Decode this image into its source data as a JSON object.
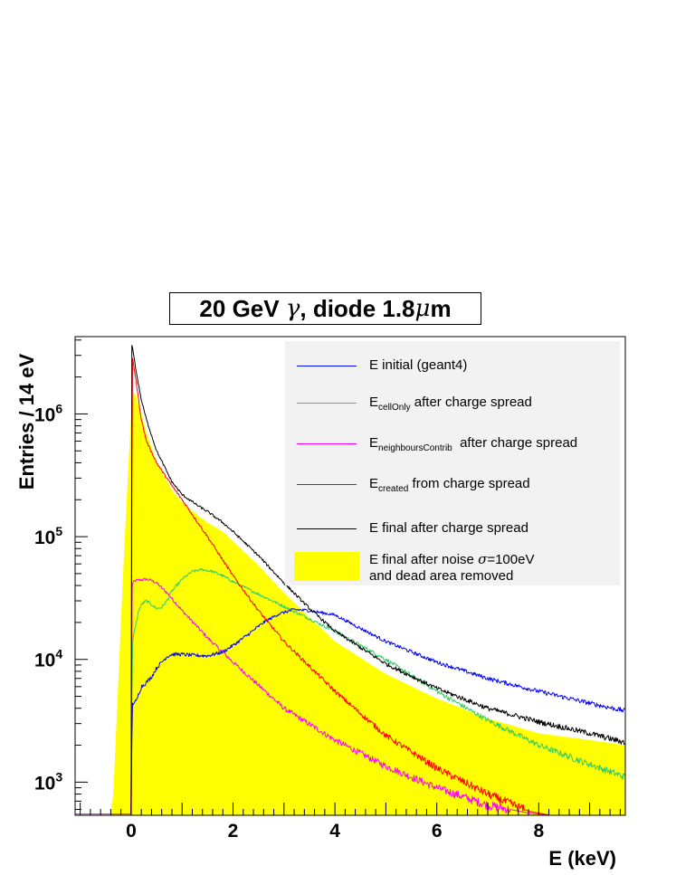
{
  "chart_data": {
    "type": "line",
    "title_prefix": "20 GeV ",
    "title_gamma": "γ",
    "title_middle": ", diode 1.8",
    "title_mu": "μ",
    "title_suffix": "m",
    "xlabel": "E (keV)",
    "ylabel": "Entries / 14 eV",
    "xlim": [
      -1.1,
      9.7
    ],
    "ylim_log10": [
      2.73,
      6.63
    ],
    "y_scale": "log",
    "x_ticks": [
      "0",
      "2",
      "4",
      "6",
      "8"
    ],
    "y_ticks": [
      "10^3",
      "10^4",
      "10^5",
      "10^6"
    ],
    "legend_placement": "top-right",
    "colors": {
      "initial": "#0000ff",
      "cellOnly": "#33cc66",
      "neighbours": "#ff00ff",
      "created": "#ff0000",
      "final": "#000000",
      "final_noise": "#ffff00"
    },
    "series": [
      {
        "key": "initial",
        "label": "E initial (geant4)",
        "x": [
          0.0,
          0.02,
          0.05,
          0.1,
          0.15,
          0.2,
          0.3,
          0.4,
          0.5,
          0.6,
          0.7,
          0.8,
          1.0,
          1.2,
          1.5,
          1.8,
          2.0,
          2.3,
          2.6,
          2.9,
          3.2,
          3.5,
          4.0,
          5.0,
          6.0,
          7.0,
          8.0,
          9.0,
          9.7
        ],
        "y": [
          550,
          4200,
          4500,
          4500,
          5300,
          6000,
          6500,
          7200,
          8500,
          9500,
          10500,
          11000,
          11000,
          10800,
          10700,
          11500,
          13000,
          16000,
          20000,
          23500,
          25500,
          25000,
          23000,
          14000,
          9500,
          7000,
          5500,
          4400,
          3800
        ]
      },
      {
        "key": "cellOnly",
        "label_main": "E",
        "label_sub": "cellOnly",
        "label_rest": " after charge spread",
        "x": [
          0.0,
          0.02,
          0.05,
          0.1,
          0.15,
          0.2,
          0.3,
          0.4,
          0.5,
          0.6,
          0.7,
          0.8,
          1.0,
          1.2,
          1.4,
          1.6,
          1.8,
          2.0,
          2.5,
          3.0,
          4.0,
          5.0,
          6.0,
          7.0,
          8.0,
          9.0,
          9.7
        ],
        "y": [
          550,
          12000,
          16000,
          20000,
          25000,
          28000,
          30000,
          28000,
          26000,
          26500,
          30000,
          36000,
          45000,
          52000,
          54000,
          52000,
          48000,
          43000,
          34000,
          27000,
          17000,
          10000,
          5500,
          3200,
          2000,
          1400,
          1100
        ]
      },
      {
        "key": "neighbours",
        "label_main": "E",
        "label_sub": "neighboursContrib",
        "label_rest": "  after charge spread",
        "x": [
          -1.1,
          -0.01,
          0.0,
          0.02,
          0.05,
          0.1,
          0.2,
          0.3,
          0.4,
          0.5,
          0.7,
          1.0,
          1.5,
          2.0,
          3.0,
          4.0,
          5.0,
          6.0,
          7.0,
          7.8,
          8.2
        ],
        "y": [
          550,
          550,
          550,
          40000,
          43000,
          44000,
          44500,
          45000,
          44000,
          42000,
          35000,
          25000,
          15000,
          9500,
          4000,
          2200,
          1350,
          900,
          650,
          560,
          540
        ]
      },
      {
        "key": "created",
        "label_main": "E",
        "label_sub": "created",
        "label_rest": " from charge spread",
        "x": [
          0.0,
          0.02,
          0.05,
          0.1,
          0.2,
          0.3,
          0.5,
          0.8,
          1.0,
          1.5,
          2.0,
          2.5,
          3.0,
          4.0,
          5.0,
          6.0,
          7.0,
          7.8,
          8.2
        ],
        "y": [
          550,
          3000000,
          2500000,
          1800000,
          900000,
          600000,
          400000,
          260000,
          200000,
          100000,
          48000,
          25000,
          14000,
          5500,
          2400,
          1300,
          800,
          580,
          540
        ]
      },
      {
        "key": "final",
        "label": "E final after charge spread",
        "x": [
          0.0,
          0.01,
          0.03,
          0.05,
          0.1,
          0.2,
          0.3,
          0.5,
          0.8,
          1.0,
          1.3,
          1.5,
          1.8,
          2.0,
          2.5,
          3.0,
          3.5,
          4.0,
          5.0,
          6.0,
          7.0,
          8.0,
          9.0,
          9.7
        ],
        "y": [
          550,
          3600000,
          3500000,
          3000000,
          2200000,
          1300000,
          900000,
          500000,
          280000,
          220000,
          180000,
          160000,
          130000,
          110000,
          70000,
          42000,
          26000,
          17000,
          9200,
          5800,
          4000,
          3100,
          2500,
          2100
        ]
      },
      {
        "key": "final_noise",
        "label_line1": "E final after noise ",
        "label_sigma": "σ",
        "label_line1_rest": "=100eV",
        "label_line2": "and dead area removed",
        "x": [
          -1.1,
          -0.4,
          -0.35,
          -0.25,
          -0.15,
          -0.05,
          0.0,
          0.05,
          0.1,
          0.2,
          0.3,
          0.5,
          0.8,
          1.0,
          1.3,
          1.5,
          1.8,
          2.0,
          2.5,
          3.0,
          3.5,
          4.0,
          5.0,
          6.0,
          7.0,
          8.0,
          9.0,
          9.7
        ],
        "y": [
          540,
          540,
          800,
          7000,
          60000,
          400000,
          1000000,
          1500000,
          1400000,
          1000000,
          700000,
          400000,
          240000,
          190000,
          150000,
          130000,
          110000,
          92000,
          58000,
          35000,
          22000,
          14000,
          7600,
          4800,
          3300,
          2500,
          2200,
          2000
        ]
      }
    ]
  }
}
